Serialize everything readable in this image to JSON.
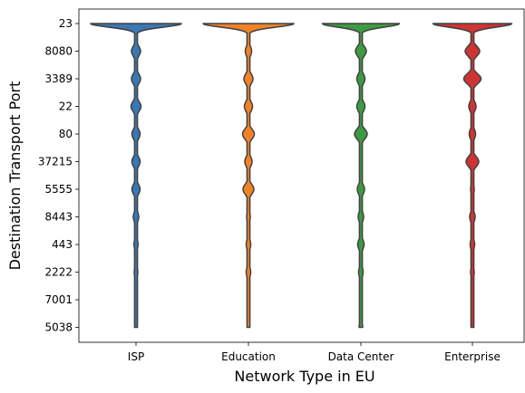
{
  "chart_data": {
    "type": "violin",
    "title": "",
    "xlabel": "Network Type in EU",
    "ylabel": "Destination Transport Port",
    "categories": [
      "ISP",
      "Education",
      "Data Center",
      "Enterprise"
    ],
    "y_categories": [
      "23",
      "8080",
      "3389",
      "22",
      "80",
      "37215",
      "5555",
      "8443",
      "443",
      "2222",
      "7001",
      "5038"
    ],
    "grid": false,
    "legend": "none",
    "series": [
      {
        "category": "ISP",
        "color": "#3a78b3",
        "density": [
          1.0,
          0.1,
          0.1,
          0.11,
          0.09,
          0.09,
          0.09,
          0.06,
          0.045,
          0.04,
          0.02,
          0.02
        ]
      },
      {
        "category": "Education",
        "color": "#f08327",
        "density": [
          1.0,
          0.07,
          0.1,
          0.09,
          0.13,
          0.08,
          0.12,
          0.04,
          0.05,
          0.05,
          0.015,
          0.015
        ]
      },
      {
        "category": "Data Center",
        "color": "#3e9a42",
        "density": [
          0.85,
          0.12,
          0.09,
          0.09,
          0.14,
          0.02,
          0.08,
          0.06,
          0.07,
          0.05,
          0.02,
          0.04
        ]
      },
      {
        "category": "Enterprise",
        "color": "#cf3434",
        "density": [
          0.87,
          0.16,
          0.19,
          0.08,
          0.07,
          0.14,
          0.04,
          0.06,
          0.05,
          0.04,
          0.015,
          0.03
        ]
      }
    ]
  }
}
